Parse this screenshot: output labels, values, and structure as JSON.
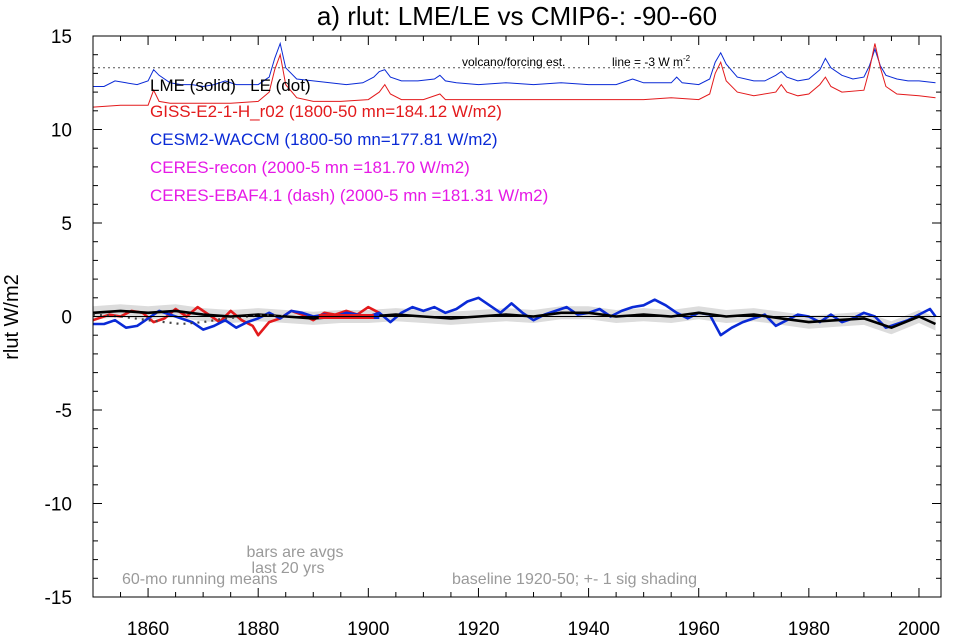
{
  "chart_data": {
    "type": "line",
    "title": "a) rlut: LME/LE vs CMIP6-: -90--60",
    "xlabel": "",
    "ylabel": "rlut W/m2",
    "xlim": [
      1850,
      2004
    ],
    "ylim": [
      -15,
      15
    ],
    "x_ticks": [
      1860,
      1880,
      1900,
      1920,
      1940,
      1960,
      1980,
      2000
    ],
    "x_tick_labels": [
      "1860",
      "1880",
      "1900",
      "1920",
      "1940",
      "1960",
      "1980",
      "2000"
    ],
    "y_ticks": [
      -15,
      -10,
      -5,
      0,
      5,
      10,
      15
    ],
    "y_tick_labels": [
      "-15",
      "-10",
      "-5",
      "0",
      "5",
      "10",
      "15"
    ],
    "grid": false,
    "legend": {
      "placement": "top-left",
      "header": "LME (solid)   LE (dot)",
      "entries": [
        {
          "label": "GISS-E2-1-H_r02 (1800-50 mn=184.12 W/m2)",
          "color": "#e31a1c"
        },
        {
          "label": "CESM2-WACCM (1800-50 mn=177.81 W/m2)",
          "color": "#0a2ad6"
        },
        {
          "label": "CERES-recon (2000-5 mn =181.70 W/m2)",
          "color": "#e619e6"
        },
        {
          "label": "CERES-EBAF4.1 (dash) (2000-5 mn =181.31 W/m2)",
          "color": "#e619e6"
        }
      ]
    },
    "annotations": {
      "volcano": "volcano/forcing est.",
      "line_note": "line = -3 W m",
      "line_note_sup": "-2",
      "bars_line1": "bars are avgs",
      "bars_line2": "last 20 yrs",
      "running": "60-mo running means",
      "baseline": "baseline 1920-50; +- 1 sig shading"
    },
    "reference_line_y": 13.3,
    "series": [
      {
        "name": "GISS-E2-1-H_r02",
        "color": "#e31a1c",
        "x": [
          1850,
          1853,
          1855,
          1857,
          1859,
          1861,
          1863,
          1865,
          1867,
          1869,
          1871,
          1873,
          1875,
          1877,
          1879,
          1880,
          1882,
          1884,
          1886,
          1888,
          1890,
          1892,
          1894,
          1896,
          1898,
          1900,
          1902
        ],
        "y": [
          -0.2,
          0.1,
          0.0,
          0.3,
          0.2,
          -0.3,
          -0.1,
          0.4,
          0.0,
          0.5,
          0.1,
          -0.3,
          0.3,
          -0.2,
          -0.5,
          -1.0,
          -0.3,
          -0.1,
          0.3,
          0.1,
          -0.2,
          0.2,
          0.1,
          0.3,
          0.1,
          0.5,
          0.2
        ]
      },
      {
        "name": "CESM2-WACCM",
        "color": "#0a2ad6",
        "x": [
          1850,
          1852,
          1854,
          1856,
          1858,
          1860,
          1862,
          1864,
          1866,
          1868,
          1870,
          1872,
          1874,
          1876,
          1878,
          1880,
          1882,
          1884,
          1886,
          1888,
          1890,
          1892,
          1894,
          1896,
          1898,
          1900,
          1902,
          1904,
          1906,
          1908,
          1910,
          1912,
          1914,
          1916,
          1918,
          1920,
          1922,
          1924,
          1926,
          1928,
          1930,
          1932,
          1934,
          1936,
          1938,
          1940,
          1942,
          1944,
          1946,
          1948,
          1950,
          1952,
          1954,
          1956,
          1958,
          1960,
          1962,
          1964,
          1966,
          1968,
          1970,
          1972,
          1974,
          1976,
          1978,
          1980,
          1982,
          1984,
          1986,
          1988,
          1990,
          1992,
          1994,
          1996,
          1998,
          2000,
          2002,
          2003
        ],
        "y": [
          -0.4,
          -0.4,
          -0.2,
          -0.6,
          -0.5,
          -0.1,
          0.3,
          0.1,
          -0.1,
          -0.3,
          -0.7,
          -0.5,
          -0.2,
          -0.6,
          -0.3,
          -0.1,
          0.2,
          -0.1,
          0.3,
          0.2,
          0.0,
          0.1,
          0.0,
          0.2,
          0.1,
          0.0,
          0.2,
          -0.3,
          0.2,
          0.5,
          0.3,
          0.5,
          0.2,
          0.4,
          0.8,
          1.0,
          0.6,
          0.2,
          0.7,
          0.2,
          -0.2,
          0.1,
          0.3,
          0.5,
          0.1,
          0.2,
          0.4,
          0.0,
          0.3,
          0.5,
          0.6,
          0.9,
          0.6,
          0.2,
          -0.1,
          0.2,
          0.1,
          -1.0,
          -0.6,
          -0.3,
          -0.1,
          0.1,
          -0.5,
          -0.2,
          0.1,
          0.0,
          -0.3,
          0.1,
          -0.3,
          -0.1,
          0.2,
          0.0,
          -0.6,
          -0.4,
          -0.2,
          0.1,
          0.4,
          0.0
        ]
      },
      {
        "name": "LME ensemble mean",
        "color": "#000000",
        "x": [
          1850,
          1855,
          1860,
          1865,
          1870,
          1875,
          1880,
          1885,
          1890,
          1895,
          1900,
          1905,
          1910,
          1915,
          1920,
          1925,
          1930,
          1935,
          1940,
          1945,
          1950,
          1955,
          1960,
          1965,
          1970,
          1975,
          1980,
          1985,
          1990,
          1995,
          2000,
          2003
        ],
        "y": [
          0.2,
          0.3,
          0.2,
          0.3,
          0.1,
          0.0,
          0.1,
          0.0,
          -0.1,
          0.0,
          0.0,
          0.1,
          0.0,
          -0.1,
          0.0,
          0.1,
          0.0,
          0.2,
          0.2,
          0.0,
          0.1,
          0.0,
          0.2,
          0.0,
          0.1,
          -0.1,
          -0.3,
          -0.2,
          -0.1,
          -0.6,
          0.0,
          -0.4
        ]
      },
      {
        "name": "LE ensemble mean",
        "color": "#444444",
        "dash": "dot",
        "x": [
          1850,
          1855,
          1860,
          1863,
          1866,
          1870,
          1874,
          1878,
          1882,
          1885
        ],
        "y": [
          0.1,
          0.0,
          -0.2,
          -0.3,
          -0.4,
          -0.3,
          -0.1,
          0.0,
          0.1,
          0.0
        ]
      }
    ],
    "forcing_series": [
      {
        "color": "#0a2ad6",
        "x": [
          1850,
          1852,
          1854,
          1856,
          1858,
          1860,
          1861,
          1862,
          1864,
          1866,
          1868,
          1870,
          1872,
          1874,
          1876,
          1878,
          1880,
          1882,
          1883,
          1884,
          1885,
          1887,
          1890,
          1893,
          1896,
          1899,
          1901,
          1902,
          1903,
          1904,
          1906,
          1909,
          1912,
          1913,
          1914,
          1916,
          1920,
          1925,
          1930,
          1935,
          1940,
          1945,
          1947,
          1948,
          1950,
          1955,
          1956,
          1957,
          1960,
          1962,
          1963,
          1964,
          1965,
          1967,
          1970,
          1972,
          1974,
          1975,
          1976,
          1978,
          1980,
          1982,
          1983,
          1984,
          1986,
          1988,
          1990,
          1991,
          1992,
          1993,
          1994,
          1996,
          1998,
          2000,
          2003
        ],
        "y": [
          12.3,
          12.3,
          12.6,
          12.5,
          12.4,
          12.6,
          13.2,
          12.9,
          12.5,
          12.4,
          12.4,
          12.3,
          12.4,
          12.6,
          12.4,
          12.4,
          12.4,
          12.8,
          13.8,
          14.6,
          13.3,
          12.7,
          12.6,
          12.5,
          12.4,
          12.5,
          12.8,
          13.1,
          13.2,
          12.8,
          12.6,
          12.6,
          12.7,
          12.9,
          12.6,
          12.5,
          12.4,
          12.5,
          12.4,
          12.5,
          12.4,
          12.4,
          12.6,
          12.7,
          12.5,
          12.5,
          12.8,
          12.5,
          12.4,
          12.7,
          13.6,
          14.1,
          13.5,
          12.8,
          12.6,
          12.6,
          12.9,
          13.1,
          12.8,
          12.6,
          12.7,
          13.2,
          13.8,
          13.3,
          12.9,
          12.7,
          12.8,
          13.4,
          14.3,
          13.4,
          12.9,
          12.7,
          12.6,
          12.6,
          12.5
        ]
      },
      {
        "color": "#e31a1c",
        "x": [
          1850,
          1855,
          1860,
          1861,
          1862,
          1864,
          1870,
          1875,
          1880,
          1882,
          1883,
          1884,
          1885,
          1887,
          1890,
          1895,
          1900,
          1902,
          1903,
          1904,
          1906,
          1910,
          1913,
          1914,
          1920,
          1930,
          1940,
          1950,
          1955,
          1960,
          1962,
          1963,
          1964,
          1965,
          1967,
          1970,
          1974,
          1975,
          1976,
          1978,
          1980,
          1982,
          1983,
          1984,
          1986,
          1990,
          1991,
          1992,
          1993,
          1994,
          1996,
          2000,
          2003
        ],
        "y": [
          11.2,
          11.3,
          11.3,
          12.1,
          11.5,
          11.4,
          11.4,
          11.4,
          11.5,
          12.0,
          13.2,
          14.0,
          12.4,
          11.7,
          11.5,
          11.5,
          11.6,
          12.0,
          12.4,
          11.9,
          11.6,
          11.6,
          11.9,
          11.6,
          11.6,
          11.6,
          11.6,
          11.6,
          11.7,
          11.6,
          11.9,
          13.0,
          13.6,
          12.6,
          12.0,
          11.8,
          12.0,
          12.4,
          12.0,
          11.8,
          11.9,
          12.4,
          12.8,
          12.3,
          12.0,
          12.1,
          13.2,
          14.6,
          13.3,
          12.3,
          11.9,
          11.8,
          11.7
        ]
      }
    ],
    "bars": [
      {
        "x0": 1892,
        "x1": 1902,
        "y": 0.0,
        "color": "#0a2ad6"
      },
      {
        "x0": 1891,
        "x1": 1901,
        "y": 0.0,
        "color": "#e31a1c"
      }
    ]
  }
}
